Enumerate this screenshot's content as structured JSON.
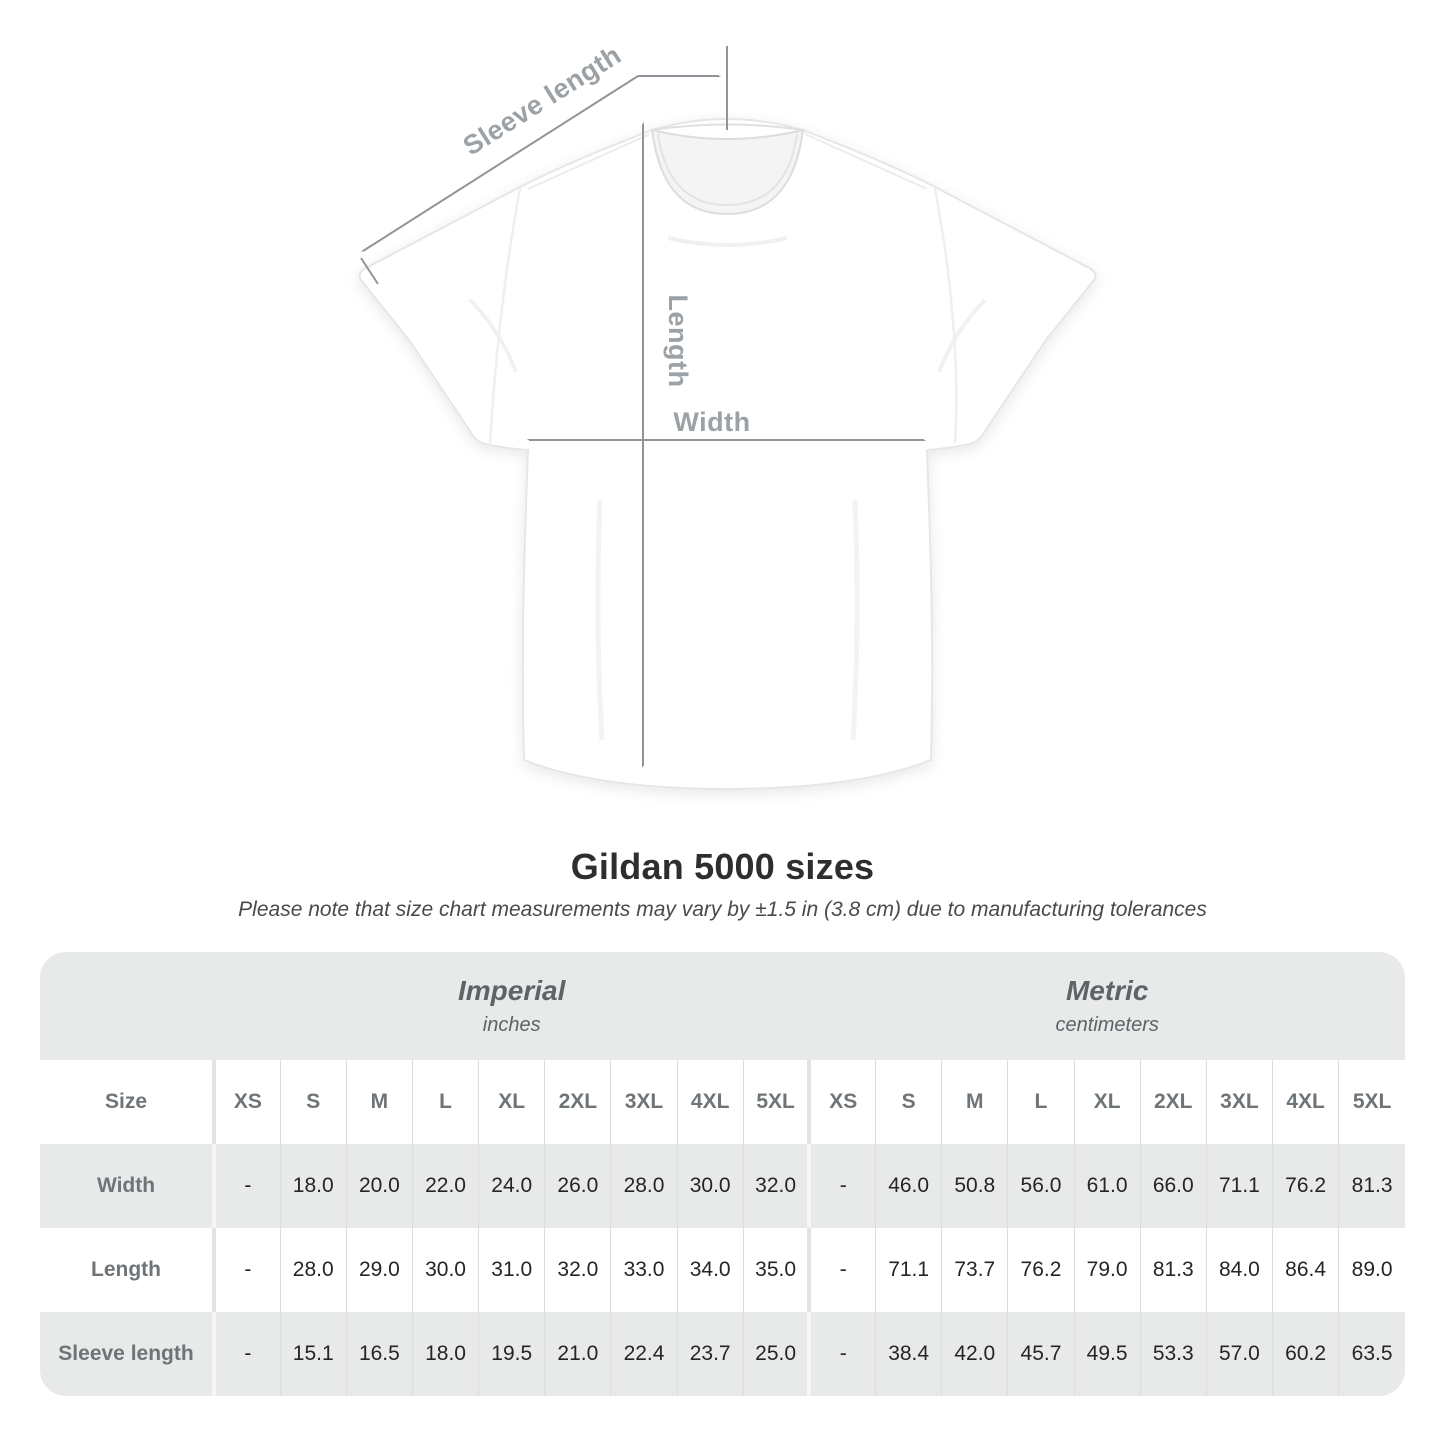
{
  "page": {
    "title": "Gildan 5000 sizes",
    "subtitle": "Please note that size chart measurements may vary by ±1.5 in (3.8 cm) due to manufacturing tolerances"
  },
  "diagram": {
    "sleeve_length_label": "Sleeve length",
    "length_label": "Length",
    "width_label": "Width"
  },
  "table": {
    "size_label": "Size",
    "groups": [
      {
        "label": "Imperial",
        "unit": "inches"
      },
      {
        "label": "Metric",
        "unit": "centimeters"
      }
    ],
    "sizes": [
      "XS",
      "S",
      "M",
      "L",
      "XL",
      "2XL",
      "3XL",
      "4XL",
      "5XL"
    ],
    "rows": [
      {
        "label": "Width",
        "imperial": [
          "-",
          "18.0",
          "20.0",
          "22.0",
          "24.0",
          "26.0",
          "28.0",
          "30.0",
          "32.0"
        ],
        "metric": [
          "-",
          "46.0",
          "50.8",
          "56.0",
          "61.0",
          "66.0",
          "71.1",
          "76.2",
          "81.3"
        ]
      },
      {
        "label": "Length",
        "imperial": [
          "-",
          "28.0",
          "29.0",
          "30.0",
          "31.0",
          "32.0",
          "33.0",
          "34.0",
          "35.0"
        ],
        "metric": [
          "-",
          "71.1",
          "73.7",
          "76.2",
          "79.0",
          "81.3",
          "84.0",
          "86.4",
          "89.0"
        ]
      },
      {
        "label": "Sleeve length",
        "imperial": [
          "-",
          "15.1",
          "16.5",
          "18.0",
          "19.5",
          "21.0",
          "22.4",
          "23.7",
          "25.0"
        ],
        "metric": [
          "-",
          "38.4",
          "42.0",
          "45.7",
          "49.5",
          "53.3",
          "57.0",
          "60.2",
          "63.5"
        ]
      }
    ]
  },
  "colors": {
    "band_gray": "#e8e9e9",
    "label_text": "#6e7478",
    "value_text": "#252525",
    "title_text": "#2e2e2e",
    "dimension_line": "#8f959a",
    "dimension_label": "#9ba1a5"
  },
  "chart_data": {
    "type": "table",
    "title": "Gildan 5000 sizes",
    "note": "Please note that size chart measurements may vary by ±1.5 in (3.8 cm) due to manufacturing tolerances",
    "column_groups": [
      "Imperial (inches)",
      "Metric (centimeters)"
    ],
    "columns": [
      "XS",
      "S",
      "M",
      "L",
      "XL",
      "2XL",
      "3XL",
      "4XL",
      "5XL"
    ],
    "rows": [
      {
        "label": "Width",
        "imperial_in": [
          null,
          18.0,
          20.0,
          22.0,
          24.0,
          26.0,
          28.0,
          30.0,
          32.0
        ],
        "metric_cm": [
          null,
          46.0,
          50.8,
          56.0,
          61.0,
          66.0,
          71.1,
          76.2,
          81.3
        ]
      },
      {
        "label": "Length",
        "imperial_in": [
          null,
          28.0,
          29.0,
          30.0,
          31.0,
          32.0,
          33.0,
          34.0,
          35.0
        ],
        "metric_cm": [
          null,
          71.1,
          73.7,
          76.2,
          79.0,
          81.3,
          84.0,
          86.4,
          89.0
        ]
      },
      {
        "label": "Sleeve length",
        "imperial_in": [
          null,
          15.1,
          16.5,
          18.0,
          19.5,
          21.0,
          22.4,
          23.7,
          25.0
        ],
        "metric_cm": [
          null,
          38.4,
          42.0,
          45.7,
          49.5,
          53.3,
          57.0,
          60.2,
          63.5
        ]
      }
    ]
  }
}
